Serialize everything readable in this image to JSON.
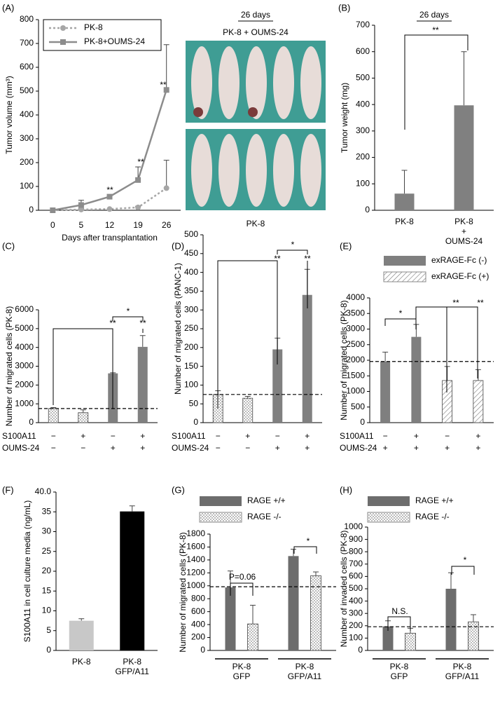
{
  "photos": {
    "title": "26 days",
    "top_label": "PK-8 + OUMS-24",
    "bottom_label": "PK-8"
  },
  "chart_data": [
    {
      "type": "line",
      "panel_label": "(A)",
      "categories": [
        "0",
        "5",
        "12",
        "19",
        "26"
      ],
      "xlabel": "Days after transplantation",
      "ylabel": "Tumor volume (mm³)",
      "ylim": [
        0,
        800
      ],
      "yticks": [
        0,
        100,
        200,
        300,
        400,
        500,
        600,
        700,
        800
      ],
      "series": [
        {
          "name": "PK-8",
          "color": "#a6a6a6",
          "dash": true,
          "marker": "circle",
          "values": [
            0,
            3,
            5,
            12,
            93
          ],
          "errors": [
            null,
            5,
            null,
            5,
            117
          ]
        },
        {
          "name": "PK-8+OUMS-24",
          "color": "#8c8c8c",
          "dash": false,
          "marker": "square",
          "values": [
            0,
            22,
            57,
            127,
            505
          ],
          "errors": [
            null,
            20,
            null,
            55,
            190
          ]
        }
      ],
      "annotations": [
        "**",
        "**",
        "**"
      ]
    },
    {
      "type": "bar",
      "panel_label": "(B)",
      "title": "26 days",
      "categories": [
        "PK-8",
        "PK-8\n+\nOUMS-24"
      ],
      "ylabel": "Tumor weight (mg)",
      "ylim": [
        0,
        700
      ],
      "yticks": [
        0,
        100,
        200,
        300,
        400,
        500,
        600,
        700
      ],
      "series": [
        {
          "color": "#808080",
          "pattern": "solid",
          "values": [
            63,
            397
          ],
          "errors": [
            88,
            203
          ]
        }
      ],
      "annotations": [
        "**"
      ]
    },
    {
      "type": "bar",
      "panel_label": "(C)",
      "ylabel": "Number of migrated cells (PK-8)",
      "ylim": [
        0,
        6000
      ],
      "yticks": [
        0,
        1000,
        2000,
        3000,
        4000,
        5000,
        6000
      ],
      "reference_line": 750,
      "series": [
        {
          "color": "#808080",
          "patterns": [
            "dots",
            "dots",
            "solid",
            "solid"
          ],
          "values": [
            750,
            530,
            2620,
            4030
          ],
          "errors": [
            50,
            150,
            30,
            600
          ]
        }
      ],
      "conditions": [
        {
          "name": "S100A11",
          "values": [
            "−",
            "+",
            "−",
            "+"
          ]
        },
        {
          "name": "OUMS-24",
          "values": [
            "−",
            "−",
            "+",
            "+"
          ]
        }
      ],
      "annotations": [
        "*",
        "**",
        "**"
      ]
    },
    {
      "type": "bar",
      "panel_label": "(D)",
      "ylabel": "Number of migrated cells (PANC-1)",
      "ylim": [
        0,
        500
      ],
      "yticks": [
        0,
        50,
        100,
        150,
        200,
        250,
        300,
        350,
        400,
        450,
        500
      ],
      "reference_line": 75,
      "series": [
        {
          "color": "#808080",
          "patterns": [
            "dots",
            "dots",
            "solid",
            "solid"
          ],
          "values": [
            75,
            65,
            195,
            340
          ],
          "errors": [
            10,
            5,
            30,
            68
          ]
        }
      ],
      "conditions": [
        {
          "name": "S100A11",
          "values": [
            "−",
            "+",
            "−",
            "+"
          ]
        },
        {
          "name": "OUMS-24",
          "values": [
            "−",
            "−",
            "+",
            "+"
          ]
        }
      ],
      "annotations": [
        "*",
        "**",
        "**"
      ]
    },
    {
      "type": "bar",
      "panel_label": "(E)",
      "ylabel": "Number of migrated cells (PK-8)",
      "ylim": [
        0,
        4000
      ],
      "yticks": [
        0,
        500,
        1000,
        1500,
        2000,
        2500,
        3000,
        3500,
        4000
      ],
      "reference_line": 1960,
      "series": [
        {
          "color": "#7f7f7f",
          "patterns": [
            "solid",
            "solid",
            "hatch",
            "hatch"
          ],
          "values": [
            1960,
            2750,
            1350,
            1350
          ],
          "errors": [
            300,
            400,
            450,
            350
          ]
        }
      ],
      "legend": [
        {
          "name": "exRAGE-Fc (-)",
          "pattern": "solid"
        },
        {
          "name": "exRAGE-Fc (+)",
          "pattern": "hatch"
        }
      ],
      "conditions": [
        {
          "name": "S100A11",
          "values": [
            "−",
            "+",
            "−",
            "+"
          ]
        },
        {
          "name": "OUMS-24",
          "values": [
            "+",
            "+",
            "+",
            "+"
          ]
        }
      ],
      "annotations": [
        "*",
        "**",
        "**"
      ]
    },
    {
      "type": "bar",
      "panel_label": "(F)",
      "categories": [
        "PK-8",
        "PK-8\nGFP/A11"
      ],
      "ylabel": "S100A11 in cell culture media (ng/mL)",
      "ylim": [
        0,
        40
      ],
      "yticks": [
        0,
        5,
        10,
        15,
        20,
        25,
        30,
        35,
        {
          "value": 40,
          "label": "40.0"
        }
      ],
      "series": [
        {
          "colors": [
            "#c8c8c8",
            "#000000"
          ],
          "pattern": "solid",
          "values": [
            7.5,
            35.1
          ],
          "errors": [
            0.5,
            1.4
          ]
        }
      ]
    },
    {
      "type": "bar",
      "panel_label": "(G)",
      "categories": [
        "PK-8\nGFP",
        "PK-8\nGFP/A11"
      ],
      "ylabel": "Number of migrated cells (PK-8)",
      "ylim": [
        0,
        1800
      ],
      "yticks": [
        0,
        200,
        400,
        600,
        800,
        1000,
        1200,
        1400,
        1600,
        1800
      ],
      "reference_line": 985,
      "series": [
        {
          "name": "RAGE +/+",
          "color": "#6d6d6d",
          "pattern": "solid",
          "values": [
            975,
            1460
          ],
          "errors": [
            255,
            105
          ]
        },
        {
          "name": "RAGE -/-",
          "color": "#6d6d6d",
          "pattern": "dots",
          "values": [
            410,
            1155
          ],
          "errors": [
            290,
            60
          ]
        }
      ],
      "annotations": [
        "P=0.06",
        "*"
      ]
    },
    {
      "type": "bar",
      "panel_label": "(H)",
      "categories": [
        "PK-8\nGFP",
        "PK-8\nGFP/A11"
      ],
      "ylabel": "Number of invaded cells (PK-8)",
      "ylim": [
        0,
        1000
      ],
      "yticks": [
        0,
        100,
        200,
        300,
        400,
        500,
        600,
        700,
        800,
        900,
        1000
      ],
      "reference_line": 192,
      "series": [
        {
          "name": "RAGE +/+",
          "color": "#6d6d6d",
          "pattern": "solid",
          "values": [
            195,
            500
          ],
          "errors": [
            45,
            130
          ]
        },
        {
          "name": "RAGE -/-",
          "color": "#6d6d6d",
          "pattern": "dots",
          "values": [
            140,
            232
          ],
          "errors": [
            40,
            58
          ]
        }
      ],
      "annotations": [
        "N.S.",
        "*"
      ]
    }
  ]
}
